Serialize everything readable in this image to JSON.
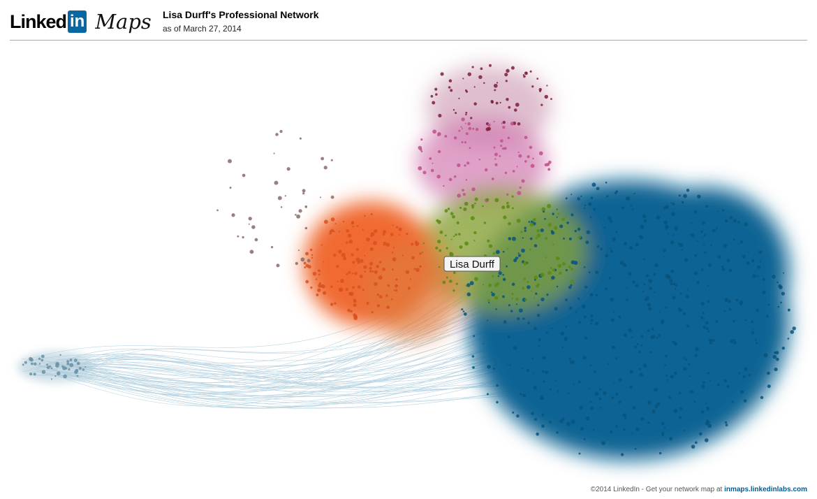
{
  "header": {
    "logo_linked": "Linked",
    "logo_in": "in",
    "logo_maps": "Maps",
    "title": "Lisa Durff's Professional Network",
    "subtitle": "as of March 27, 2014"
  },
  "map": {
    "center_label": "Lisa Durff"
  },
  "footer": {
    "text": "©2014 LinkedIn - Get your network map at",
    "link": "inmaps.linkedinlabs.com"
  }
}
